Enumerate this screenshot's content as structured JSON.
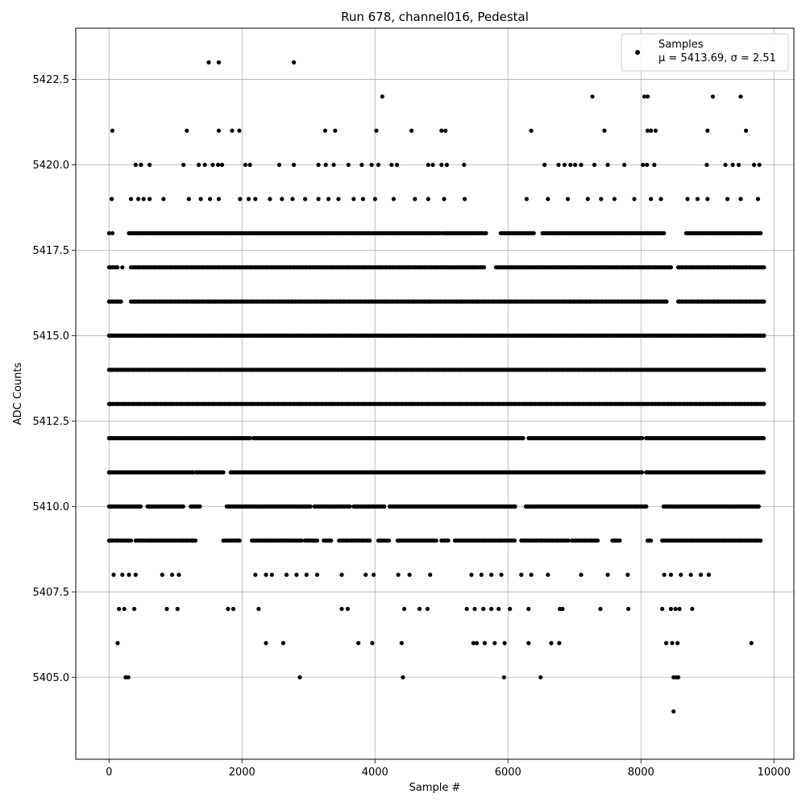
{
  "chart_data": {
    "type": "scatter",
    "title": "Run 678, channel016, Pedestal",
    "xlabel": "Sample #",
    "ylabel": "ADC Counts",
    "xlim": [
      -500,
      10300
    ],
    "ylim": [
      5402.6,
      5424.0
    ],
    "xticks": [
      0,
      2000,
      4000,
      6000,
      8000,
      10000
    ],
    "xtick_labels": [
      "0",
      "2000",
      "4000",
      "6000",
      "8000",
      "10000"
    ],
    "yticks": [
      5405.0,
      5407.5,
      5410.0,
      5412.5,
      5415.0,
      5417.5,
      5420.0,
      5422.5
    ],
    "ytick_labels": [
      "5405.0",
      "5407.5",
      "5410.0",
      "5412.5",
      "5415.0",
      "5417.5",
      "5420.0",
      "5422.5"
    ],
    "grid": true,
    "legend": {
      "position": "top-right",
      "entries": [
        {
          "label_line1": "Samples",
          "label_line2": "μ = 5413.69, σ = 2.51"
        }
      ]
    },
    "series": [
      {
        "name": "Samples",
        "color": "#000000",
        "x_range": [
          0,
          9850
        ],
        "n_samples": 9850,
        "mean": 5413.69,
        "std": 2.51,
        "points": [
          [
            1500,
            5423
          ],
          [
            1650,
            5423
          ],
          [
            2780,
            5423
          ],
          [
            4110,
            5422
          ],
          [
            7270,
            5422
          ],
          [
            8050,
            5422
          ],
          [
            8100,
            5422
          ],
          [
            9080,
            5422
          ],
          [
            9500,
            5422
          ],
          [
            50,
            5421
          ],
          [
            1170,
            5421
          ],
          [
            1650,
            5421
          ],
          [
            1850,
            5421
          ],
          [
            1960,
            5421
          ],
          [
            3250,
            5421
          ],
          [
            3400,
            5421
          ],
          [
            4020,
            5421
          ],
          [
            4550,
            5421
          ],
          [
            5000,
            5421
          ],
          [
            5060,
            5421
          ],
          [
            6350,
            5421
          ],
          [
            7450,
            5421
          ],
          [
            8100,
            5421
          ],
          [
            8150,
            5421
          ],
          [
            8220,
            5421
          ],
          [
            9000,
            5421
          ],
          [
            9580,
            5421
          ],
          [
            400,
            5420
          ],
          [
            480,
            5420
          ],
          [
            610,
            5420
          ],
          [
            1120,
            5420
          ],
          [
            1350,
            5420
          ],
          [
            1440,
            5420
          ],
          [
            1560,
            5420
          ],
          [
            1640,
            5420
          ],
          [
            1700,
            5420
          ],
          [
            2050,
            5420
          ],
          [
            2120,
            5420
          ],
          [
            2560,
            5420
          ],
          [
            2780,
            5420
          ],
          [
            3150,
            5420
          ],
          [
            3260,
            5420
          ],
          [
            3380,
            5420
          ],
          [
            3600,
            5420
          ],
          [
            3800,
            5420
          ],
          [
            3950,
            5420
          ],
          [
            4050,
            5420
          ],
          [
            4250,
            5420
          ],
          [
            4330,
            5420
          ],
          [
            4800,
            5420
          ],
          [
            4870,
            5420
          ],
          [
            5000,
            5420
          ],
          [
            5080,
            5420
          ],
          [
            5340,
            5420
          ],
          [
            6550,
            5420
          ],
          [
            6760,
            5420
          ],
          [
            6850,
            5420
          ],
          [
            6940,
            5420
          ],
          [
            7010,
            5420
          ],
          [
            7100,
            5420
          ],
          [
            7300,
            5420
          ],
          [
            7500,
            5420
          ],
          [
            7750,
            5420
          ],
          [
            8030,
            5420
          ],
          [
            8090,
            5420
          ],
          [
            8200,
            5420
          ],
          [
            8990,
            5420
          ],
          [
            9270,
            5420
          ],
          [
            9380,
            5420
          ],
          [
            9470,
            5420
          ],
          [
            9700,
            5420
          ],
          [
            9780,
            5420
          ],
          [
            0,
            5418
          ],
          [
            40,
            5419
          ],
          [
            330,
            5419
          ],
          [
            440,
            5419
          ],
          [
            520,
            5419
          ],
          [
            610,
            5419
          ],
          [
            820,
            5419
          ],
          [
            1200,
            5419
          ],
          [
            1380,
            5419
          ],
          [
            1520,
            5419
          ],
          [
            1650,
            5419
          ],
          [
            1970,
            5419
          ],
          [
            2100,
            5419
          ],
          [
            2200,
            5419
          ],
          [
            2420,
            5419
          ],
          [
            2600,
            5419
          ],
          [
            2760,
            5419
          ],
          [
            2950,
            5419
          ],
          [
            3150,
            5419
          ],
          [
            3300,
            5419
          ],
          [
            3450,
            5419
          ],
          [
            3680,
            5419
          ],
          [
            3820,
            5419
          ],
          [
            4000,
            5419
          ],
          [
            4280,
            5419
          ],
          [
            4600,
            5419
          ],
          [
            4800,
            5419
          ],
          [
            5040,
            5419
          ],
          [
            5350,
            5419
          ],
          [
            6280,
            5419
          ],
          [
            6600,
            5419
          ],
          [
            6900,
            5419
          ],
          [
            7200,
            5419
          ],
          [
            7400,
            5419
          ],
          [
            7600,
            5419
          ],
          [
            7900,
            5419
          ],
          [
            8150,
            5419
          ],
          [
            8300,
            5419
          ],
          [
            8700,
            5419
          ],
          [
            8850,
            5419
          ],
          [
            9000,
            5419
          ],
          [
            9300,
            5419
          ],
          [
            9500,
            5419
          ],
          [
            9760,
            5419
          ],
          [
            50,
            5418
          ],
          [
            200,
            5417
          ],
          [
            20,
            5416
          ],
          [
            20,
            5415
          ],
          [
            20,
            5414
          ],
          [
            20,
            5413
          ],
          [
            20,
            5412
          ],
          [
            20,
            5411
          ],
          [
            20,
            5410
          ],
          [
            20,
            5409
          ],
          [
            70,
            5408
          ],
          [
            200,
            5408
          ],
          [
            300,
            5408
          ],
          [
            400,
            5408
          ],
          [
            800,
            5408
          ],
          [
            950,
            5408
          ],
          [
            1050,
            5408
          ],
          [
            2200,
            5408
          ],
          [
            2360,
            5408
          ],
          [
            2450,
            5408
          ],
          [
            2670,
            5408
          ],
          [
            2820,
            5408
          ],
          [
            2970,
            5408
          ],
          [
            3130,
            5408
          ],
          [
            3500,
            5408
          ],
          [
            3860,
            5408
          ],
          [
            3980,
            5408
          ],
          [
            4350,
            5408
          ],
          [
            4520,
            5408
          ],
          [
            4830,
            5408
          ],
          [
            5450,
            5408
          ],
          [
            5600,
            5408
          ],
          [
            5750,
            5408
          ],
          [
            5900,
            5408
          ],
          [
            6200,
            5408
          ],
          [
            6350,
            5408
          ],
          [
            6600,
            5408
          ],
          [
            7100,
            5408
          ],
          [
            7500,
            5408
          ],
          [
            7800,
            5408
          ],
          [
            8350,
            5408
          ],
          [
            8450,
            5408
          ],
          [
            8600,
            5408
          ],
          [
            8750,
            5408
          ],
          [
            8900,
            5408
          ],
          [
            9020,
            5408
          ],
          [
            150,
            5407
          ],
          [
            230,
            5407
          ],
          [
            380,
            5407
          ],
          [
            870,
            5407
          ],
          [
            1030,
            5407
          ],
          [
            1790,
            5407
          ],
          [
            1870,
            5407
          ],
          [
            2250,
            5407
          ],
          [
            3500,
            5407
          ],
          [
            3590,
            5407
          ],
          [
            4440,
            5407
          ],
          [
            4670,
            5407
          ],
          [
            4790,
            5407
          ],
          [
            5380,
            5407
          ],
          [
            5500,
            5407
          ],
          [
            5630,
            5407
          ],
          [
            5750,
            5407
          ],
          [
            5860,
            5407
          ],
          [
            6030,
            5407
          ],
          [
            6310,
            5407
          ],
          [
            6780,
            5407
          ],
          [
            6820,
            5407
          ],
          [
            7390,
            5407
          ],
          [
            7810,
            5407
          ],
          [
            8320,
            5407
          ],
          [
            8450,
            5407
          ],
          [
            8520,
            5407
          ],
          [
            8580,
            5407
          ],
          [
            8770,
            5407
          ],
          [
            130,
            5406
          ],
          [
            2360,
            5406
          ],
          [
            2620,
            5406
          ],
          [
            3750,
            5406
          ],
          [
            3960,
            5406
          ],
          [
            4400,
            5406
          ],
          [
            5480,
            5406
          ],
          [
            5530,
            5406
          ],
          [
            5650,
            5406
          ],
          [
            5800,
            5406
          ],
          [
            5950,
            5406
          ],
          [
            6310,
            5406
          ],
          [
            6650,
            5406
          ],
          [
            6770,
            5406
          ],
          [
            8380,
            5406
          ],
          [
            8470,
            5406
          ],
          [
            8550,
            5406
          ],
          [
            9660,
            5406
          ],
          [
            250,
            5405
          ],
          [
            290,
            5405
          ],
          [
            2870,
            5405
          ],
          [
            4420,
            5405
          ],
          [
            5940,
            5405
          ],
          [
            6490,
            5405
          ],
          [
            8490,
            5405
          ],
          [
            8530,
            5405
          ],
          [
            8560,
            5405
          ],
          [
            8490,
            5404
          ]
        ],
        "bands": [
          {
            "y": 5409,
            "x_ranges": [
              [
                0,
                330
              ],
              [
                400,
                1300
              ],
              [
                1720,
                1970
              ],
              [
                2150,
                2900
              ],
              [
                2950,
                3130
              ],
              [
                3230,
                3340
              ],
              [
                3460,
                3920
              ],
              [
                4050,
                4210
              ],
              [
                4340,
                4920
              ],
              [
                5000,
                5100
              ],
              [
                5200,
                6100
              ],
              [
                6200,
                6910
              ],
              [
                6960,
                7350
              ],
              [
                7570,
                7680
              ],
              [
                8100,
                8150
              ],
              [
                8320,
                9800
              ]
            ]
          },
          {
            "y": 5410,
            "x_ranges": [
              [
                0,
                480
              ],
              [
                580,
                1120
              ],
              [
                1230,
                1370
              ],
              [
                1770,
                3030
              ],
              [
                3090,
                3620
              ],
              [
                3680,
                4140
              ],
              [
                4220,
                6110
              ],
              [
                6270,
                8080
              ],
              [
                8340,
                9770
              ]
            ]
          },
          {
            "y": 5411,
            "x_ranges": [
              [
                0,
                1270
              ],
              [
                1310,
                1720
              ],
              [
                1830,
                8020
              ],
              [
                8080,
                9850
              ]
            ]
          },
          {
            "y": 5412,
            "x_ranges": [
              [
                0,
                2120
              ],
              [
                2170,
                6230
              ],
              [
                6310,
                8020
              ],
              [
                8080,
                9850
              ]
            ]
          },
          {
            "y": 5413,
            "x_ranges": [
              [
                0,
                9850
              ]
            ]
          },
          {
            "y": 5414,
            "x_ranges": [
              [
                0,
                9850
              ]
            ]
          },
          {
            "y": 5415,
            "x_ranges": [
              [
                0,
                9850
              ]
            ]
          },
          {
            "y": 5416,
            "x_ranges": [
              [
                0,
                180
              ],
              [
                330,
                8390
              ],
              [
                8560,
                9850
              ]
            ]
          },
          {
            "y": 5417,
            "x_ranges": [
              [
                0,
                130
              ],
              [
                330,
                2390
              ],
              [
                2420,
                4280
              ],
              [
                4310,
                5640
              ],
              [
                5820,
                8450
              ],
              [
                8560,
                9850
              ]
            ]
          },
          {
            "y": 5418,
            "x_ranges": [
              [
                300,
                4980
              ],
              [
                5020,
                5670
              ],
              [
                5890,
                6390
              ],
              [
                6520,
                8350
              ],
              [
                8680,
                9800
              ]
            ]
          }
        ]
      }
    ]
  }
}
